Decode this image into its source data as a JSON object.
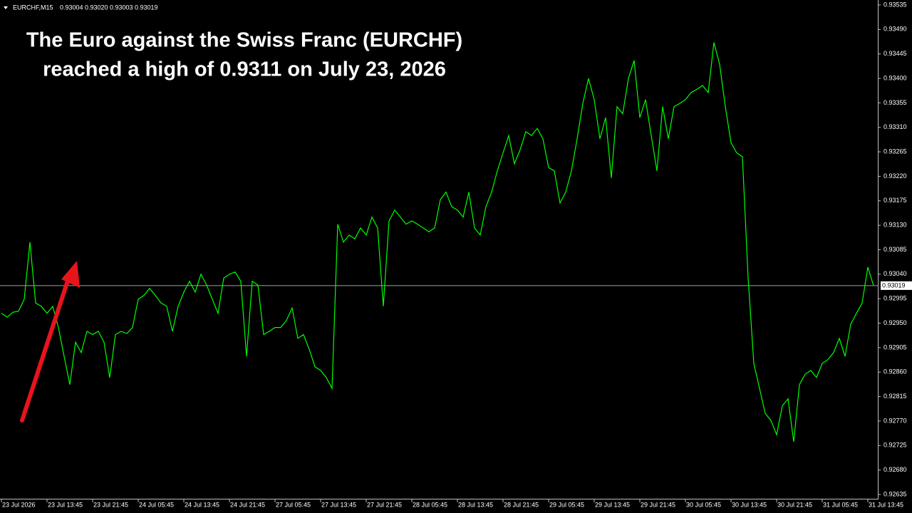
{
  "header": {
    "symbol": "EURCHF,M15",
    "ohlc": [
      "0.93004",
      "0.93020",
      "0.93003",
      "0.93019"
    ]
  },
  "annotation": {
    "lines": [
      "The Euro against the Swiss Franc (EURCHF)",
      "reached a high of 0.9311 on July 23, 2026"
    ]
  },
  "chart_data": {
    "type": "line",
    "categories": [
      "23 Jul 2026",
      null,
      null,
      null,
      null,
      null,
      null,
      null,
      "23 Jul 13:45",
      null,
      null,
      null,
      null,
      null,
      null,
      null,
      "23 Jul 21:45",
      null,
      null,
      null,
      null,
      null,
      null,
      null,
      "24 Jul 05:45",
      null,
      null,
      null,
      null,
      null,
      null,
      null,
      "24 Jul 13:45",
      null,
      null,
      null,
      null,
      null,
      null,
      null,
      "24 Jul 21:45",
      null,
      null,
      null,
      null,
      null,
      null,
      null,
      "27 Jul 05:45",
      null,
      null,
      null,
      null,
      null,
      null,
      null,
      "27 Jul 13:45",
      null,
      null,
      null,
      null,
      null,
      null,
      null,
      "27 Jul 21:45",
      null,
      null,
      null,
      null,
      null,
      null,
      null,
      "28 Jul 05:45",
      null,
      null,
      null,
      null,
      null,
      null,
      null,
      "28 Jul 13:45",
      null,
      null,
      null,
      null,
      null,
      null,
      null,
      "28 Jul 21:45",
      null,
      null,
      null,
      null,
      null,
      null,
      null,
      "29 Jul 05:45",
      null,
      null,
      null,
      null,
      null,
      null,
      null,
      "29 Jul 13:45",
      null,
      null,
      null,
      null,
      null,
      null,
      null,
      "29 Jul 21:45",
      null,
      null,
      null,
      null,
      null,
      null,
      null,
      "30 Jul 05:45",
      null,
      null,
      null,
      null,
      null,
      null,
      null,
      "30 Jul 13:45",
      null,
      null,
      null,
      null,
      null,
      null,
      null,
      "30 Jul 21:45",
      null,
      null,
      null,
      null,
      null,
      null,
      null,
      "31 Jul 05:45",
      null,
      null,
      null,
      null,
      null,
      null,
      null,
      "31 Jul 13:45",
      null
    ],
    "series": [
      {
        "color": "#00ff00",
        "values": [
          0.92968,
          0.92961,
          0.9297,
          0.92972,
          0.92994,
          0.93099,
          0.92987,
          0.92981,
          0.92968,
          0.92981,
          0.92942,
          0.92889,
          0.92837,
          0.92915,
          0.92896,
          0.92935,
          0.92929,
          0.92935,
          0.92915,
          0.9285,
          0.92929,
          0.92935,
          0.92931,
          0.92942,
          0.92994,
          0.93001,
          0.93014,
          0.93001,
          0.92987,
          0.92981,
          0.92935,
          0.92981,
          0.93007,
          0.93027,
          0.93007,
          0.9304,
          0.9302,
          0.92994,
          0.92968,
          0.93033,
          0.9304,
          0.93044,
          0.93027,
          0.92889,
          0.93027,
          0.9302,
          0.92929,
          0.92935,
          0.92942,
          0.92942,
          0.92955,
          0.92978,
          0.92922,
          0.92929,
          0.92902,
          0.9287,
          0.92863,
          0.9285,
          0.9283,
          0.93132,
          0.93099,
          0.93112,
          0.93105,
          0.93125,
          0.93112,
          0.93145,
          0.93125,
          0.92981,
          0.93138,
          0.93158,
          0.93145,
          0.93132,
          0.93138,
          0.93132,
          0.93125,
          0.93118,
          0.93125,
          0.93177,
          0.93191,
          0.93164,
          0.93158,
          0.93145,
          0.93191,
          0.93125,
          0.93112,
          0.93164,
          0.93191,
          0.9323,
          0.93263,
          0.93295,
          0.93243,
          0.93269,
          0.93302,
          0.93295,
          0.93308,
          0.93289,
          0.93236,
          0.9323,
          0.93171,
          0.93191,
          0.9323,
          0.93289,
          0.93354,
          0.934,
          0.93361,
          0.93289,
          0.93328,
          0.93217,
          0.93348,
          0.93335,
          0.934,
          0.93433,
          0.93328,
          0.93361,
          0.93295,
          0.9323,
          0.93348,
          0.93289,
          0.93348,
          0.93354,
          0.93361,
          0.93374,
          0.9338,
          0.93387,
          0.93374,
          0.93466,
          0.93426,
          0.93348,
          0.93282,
          0.93263,
          0.93256,
          0.93033,
          0.92876,
          0.9283,
          0.92784,
          0.92771,
          0.92745,
          0.92798,
          0.92811,
          0.92732,
          0.92837,
          0.92856,
          0.92863,
          0.9285,
          0.92876,
          0.92883,
          0.92896,
          0.92922,
          0.92889,
          0.92948,
          0.92968,
          0.92987,
          0.93053,
          0.93019
        ]
      }
    ],
    "current_price": 0.93019,
    "ylim": [
      0.92635,
      0.93535
    ],
    "yticks": [
      0.93535,
      {
        "value": 0.9349,
        "label": "0.93490"
      },
      0.93445,
      {
        "value": 0.934,
        "label": "0.93400"
      },
      0.93355,
      {
        "value": 0.9331,
        "label": "0.93310"
      },
      0.93265,
      {
        "value": 0.9322,
        "label": "0.93220"
      },
      0.93175,
      {
        "value": 0.9313,
        "label": "0.93130"
      },
      0.93085,
      {
        "value": 0.9304,
        "label": "0.93040"
      },
      0.92995,
      {
        "value": 0.9295,
        "label": "0.92950"
      },
      0.92905,
      {
        "value": 0.9286,
        "label": "0.92860"
      },
      0.92815,
      {
        "value": 0.9277,
        "label": "0.92770"
      },
      0.92725,
      {
        "value": 0.9268,
        "label": "0.92680"
      },
      0.92635
    ]
  }
}
